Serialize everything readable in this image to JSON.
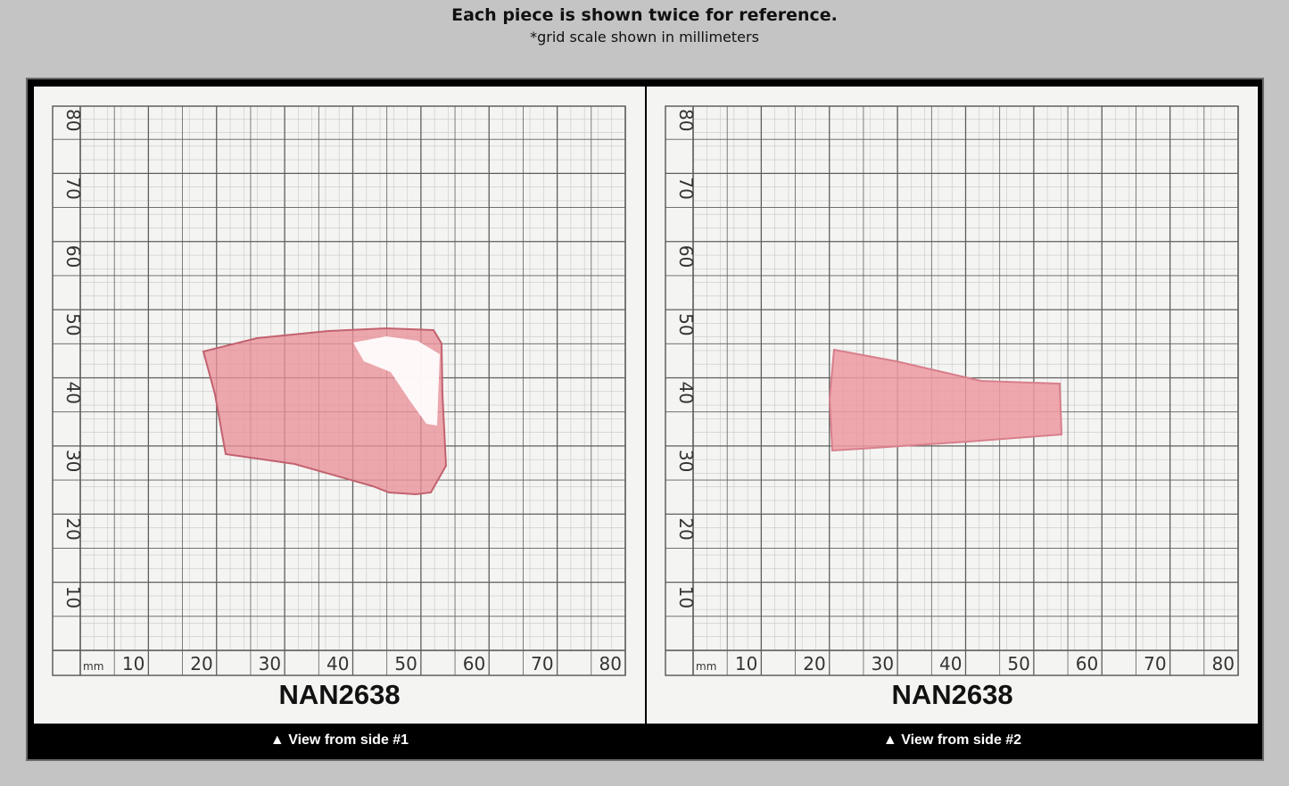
{
  "header": {
    "title": "Each piece is shown twice for reference.",
    "subtitle": "*grid scale shown in millimeters"
  },
  "grid": {
    "unit": "mm",
    "x_ticks": [
      "10",
      "20",
      "30",
      "40",
      "50",
      "60",
      "70",
      "80"
    ],
    "y_ticks": [
      "10",
      "20",
      "30",
      "40",
      "50",
      "60",
      "70",
      "80"
    ]
  },
  "panels": [
    {
      "code": "NAN2638",
      "caption": "▲ View from side #1"
    },
    {
      "code": "NAN2638",
      "caption": "▲ View from side #2"
    }
  ],
  "colors": {
    "stone": "#e9919a",
    "background": "#c4c4c4",
    "frame": "#000000"
  }
}
